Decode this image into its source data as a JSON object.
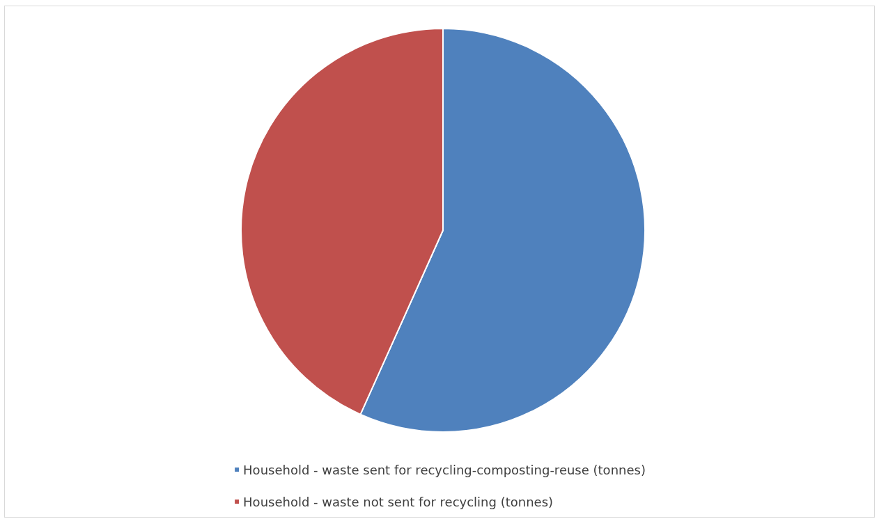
{
  "chart_data": {
    "type": "pie",
    "categories": [
      "Household - waste sent for recycling-composting-reuse (tonnes)",
      "Household - waste not sent for recycling (tonnes)"
    ],
    "values": [
      56.7,
      43.3
    ],
    "colors": [
      "#4f81bd",
      "#c0504d"
    ],
    "legend": "bottom"
  }
}
